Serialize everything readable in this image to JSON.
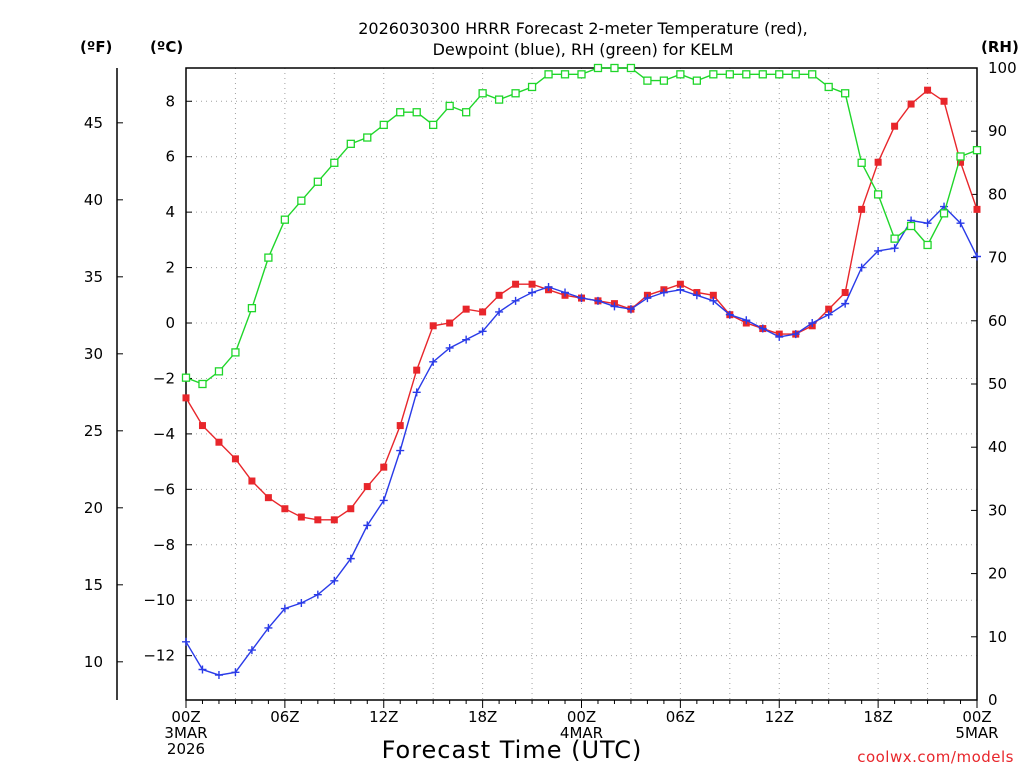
{
  "chart_data": {
    "type": "line",
    "title_lines": [
      "2026030300 HRRR Forecast 2-meter Temperature (red),",
      "Dewpoint (blue), RH (green) for KELM"
    ],
    "xlabel": "Forecast Time (UTC)",
    "credit": "coolwx.com/models",
    "unit_labels": {
      "fahrenheit": "(ºF)",
      "celsius": "(ºC)",
      "rh": "(RH)"
    },
    "x_range_hours": [
      0,
      48
    ],
    "celsius_range": [
      -13.6,
      9.2
    ],
    "rh_range": [
      0,
      100
    ],
    "x_ticks": [
      {
        "hour": 0,
        "lines": [
          "00Z",
          "3MAR",
          "2026"
        ]
      },
      {
        "hour": 6,
        "lines": [
          "06Z"
        ]
      },
      {
        "hour": 12,
        "lines": [
          "12Z"
        ]
      },
      {
        "hour": 18,
        "lines": [
          "18Z"
        ]
      },
      {
        "hour": 24,
        "lines": [
          "00Z",
          "4MAR"
        ]
      },
      {
        "hour": 30,
        "lines": [
          "06Z"
        ]
      },
      {
        "hour": 36,
        "lines": [
          "12Z"
        ]
      },
      {
        "hour": 42,
        "lines": [
          "18Z"
        ]
      },
      {
        "hour": 48,
        "lines": [
          "00Z",
          "5MAR"
        ]
      }
    ],
    "celsius_ticks": [
      8,
      6,
      4,
      2,
      0,
      -2,
      -4,
      -6,
      -8,
      -10,
      -12
    ],
    "celsius_tick_labels": [
      "8",
      "6",
      "4",
      "2",
      "0",
      "−2",
      "−4",
      "−6",
      "−8",
      "−10",
      "−12"
    ],
    "fahrenheit_ticks": [
      45,
      40,
      35,
      30,
      25,
      20,
      15,
      10
    ],
    "rh_ticks": [
      100,
      90,
      80,
      70,
      60,
      50,
      40,
      30,
      20,
      10,
      0
    ],
    "series": [
      {
        "name": "Temperature",
        "color": "#e8262b",
        "marker": "filled-square",
        "axis": "celsius",
        "values": [
          -2.7,
          -3.7,
          -4.3,
          -4.9,
          -5.7,
          -6.3,
          -6.7,
          -7.0,
          -7.1,
          -7.1,
          -6.7,
          -5.9,
          -5.2,
          -3.7,
          -1.7,
          -0.1,
          0.0,
          0.5,
          0.4,
          1.0,
          1.4,
          1.4,
          1.2,
          1.0,
          0.9,
          0.8,
          0.7,
          0.5,
          1.0,
          1.2,
          1.4,
          1.1,
          1.0,
          0.3,
          0.0,
          -0.2,
          -0.4,
          -0.4,
          -0.1,
          0.5,
          1.1,
          4.1,
          5.8,
          7.1,
          7.9,
          8.4,
          8.0,
          5.8,
          4.1
        ]
      },
      {
        "name": "Dewpoint",
        "color": "#2a3be8",
        "marker": "plus",
        "axis": "celsius",
        "values": [
          -11.5,
          -12.5,
          -12.7,
          -12.6,
          -11.8,
          -11.0,
          -10.3,
          -10.1,
          -9.8,
          -9.3,
          -8.5,
          -7.3,
          -6.4,
          -4.6,
          -2.5,
          -1.4,
          -0.9,
          -0.6,
          -0.3,
          0.4,
          0.8,
          1.1,
          1.3,
          1.1,
          0.9,
          0.8,
          0.6,
          0.5,
          0.9,
          1.1,
          1.2,
          1.0,
          0.8,
          0.3,
          0.1,
          -0.2,
          -0.5,
          -0.4,
          0.0,
          0.3,
          0.7,
          2.0,
          2.6,
          2.7,
          3.7,
          3.6,
          4.2,
          3.6,
          2.4
        ]
      },
      {
        "name": "RH",
        "color": "#1fd62a",
        "marker": "open-square",
        "axis": "rh",
        "values": [
          51,
          50,
          52,
          55,
          62,
          70,
          76,
          79,
          82,
          85,
          88,
          89,
          91,
          93,
          93,
          91,
          94,
          93,
          96,
          95,
          96,
          97,
          99,
          99,
          99,
          100,
          100,
          100,
          98,
          98,
          99,
          98,
          99,
          99,
          99,
          99,
          99,
          99,
          99,
          97,
          96,
          85,
          80,
          73,
          75,
          72,
          77,
          86,
          87
        ]
      }
    ]
  }
}
